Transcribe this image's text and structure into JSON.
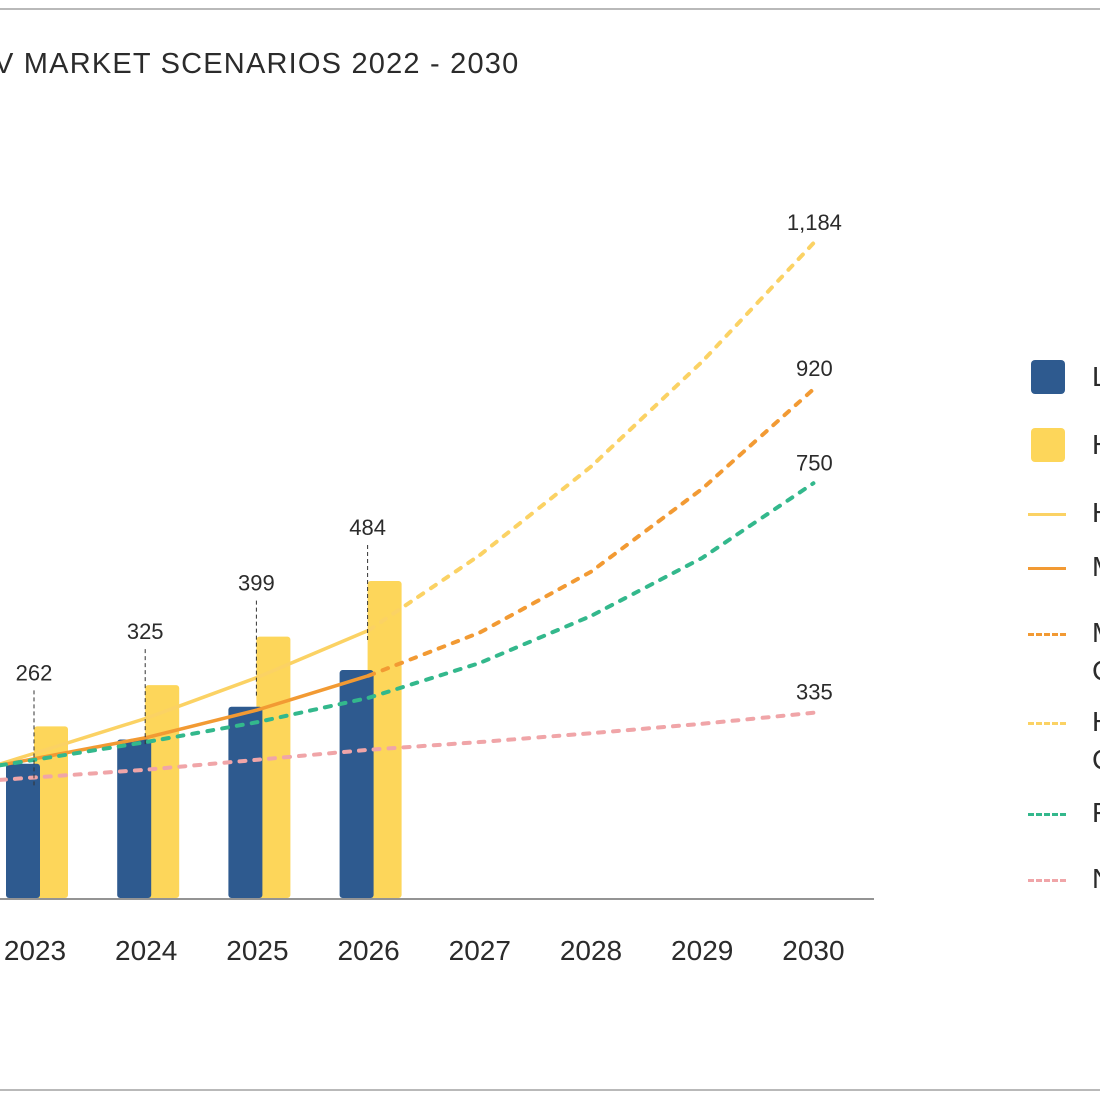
{
  "title": "V MARKET SCENARIOS 2022 - 2030",
  "chart_data": {
    "type": "bar",
    "title": "V MARKET SCENARIOS 2022 - 2030",
    "xlabel": "",
    "ylabel": "",
    "grid": false,
    "legend_position": "right",
    "categories": [
      "2023",
      "2024",
      "2025",
      "2026",
      "2027",
      "2028",
      "2029",
      "2030"
    ],
    "bar_series": [
      {
        "name": "L",
        "color": "#2e5a8f",
        "values": [
          205,
          242,
          292,
          348,
          null,
          null,
          null,
          null
        ]
      },
      {
        "name": "H",
        "color": "#fdd65a",
        "values": [
          262,
          325,
          399,
          484,
          null,
          null,
          null,
          null
        ]
      }
    ],
    "bar_labels": {
      "series": "H",
      "values": [
        "262",
        "325",
        "399",
        "484"
      ]
    },
    "line_series": [
      {
        "name": "H",
        "style": "solid",
        "color": "#fbd264",
        "x": [
          "2023",
          "2024",
          "2025",
          "2026"
        ],
        "values": [
          262,
          325,
          399,
          484
        ]
      },
      {
        "name": "M",
        "style": "solid",
        "color": "#f29a33",
        "x": [
          "2023",
          "2024",
          "2025",
          "2026"
        ],
        "values": [
          252,
          290,
          340,
          402
        ]
      },
      {
        "name": "M",
        "style": "dotted",
        "color": "#f29a33",
        "x": [
          "2026",
          "2027",
          "2028",
          "2029",
          "2030"
        ],
        "values": [
          402,
          480,
          590,
          740,
          920
        ]
      },
      {
        "name": "H",
        "style": "dotted",
        "color": "#fbd264",
        "x": [
          "2026",
          "2027",
          "2028",
          "2029",
          "2030"
        ],
        "values": [
          484,
          620,
          780,
          970,
          1184
        ]
      },
      {
        "name": "F",
        "style": "dotted",
        "color": "#33b88c",
        "x": [
          "2023",
          "2024",
          "2025",
          "2026",
          "2027",
          "2028",
          "2029",
          "2030"
        ],
        "values": [
          250,
          282,
          318,
          362,
          425,
          510,
          615,
          750
        ]
      },
      {
        "name": "N",
        "style": "dotted",
        "color": "#f0a5a8",
        "x": [
          "2023",
          "2024",
          "2025",
          "2026",
          "2027",
          "2028",
          "2029",
          "2030"
        ],
        "values": [
          218,
          232,
          250,
          268,
          282,
          298,
          315,
          335
        ]
      }
    ],
    "end_labels": [
      "1,184",
      "920",
      "750",
      "335"
    ]
  },
  "legend": [
    {
      "label": "L",
      "kind": "box",
      "color": "#2e5a8f"
    },
    {
      "label": "H",
      "kind": "box",
      "color": "#fdd65a"
    },
    {
      "label": "H",
      "kind": "solid",
      "color": "#fbd264"
    },
    {
      "label": "M",
      "kind": "solid",
      "color": "#f29a33"
    },
    {
      "label": "M",
      "label2": "C",
      "kind": "dotted",
      "color": "#f29a33"
    },
    {
      "label": "H",
      "label2": "C",
      "kind": "dotted",
      "color": "#fbd264"
    },
    {
      "label": "F",
      "kind": "dotted",
      "color": "#33b88c"
    },
    {
      "label": "N",
      "kind": "dotted",
      "color": "#f0a5a8"
    }
  ]
}
